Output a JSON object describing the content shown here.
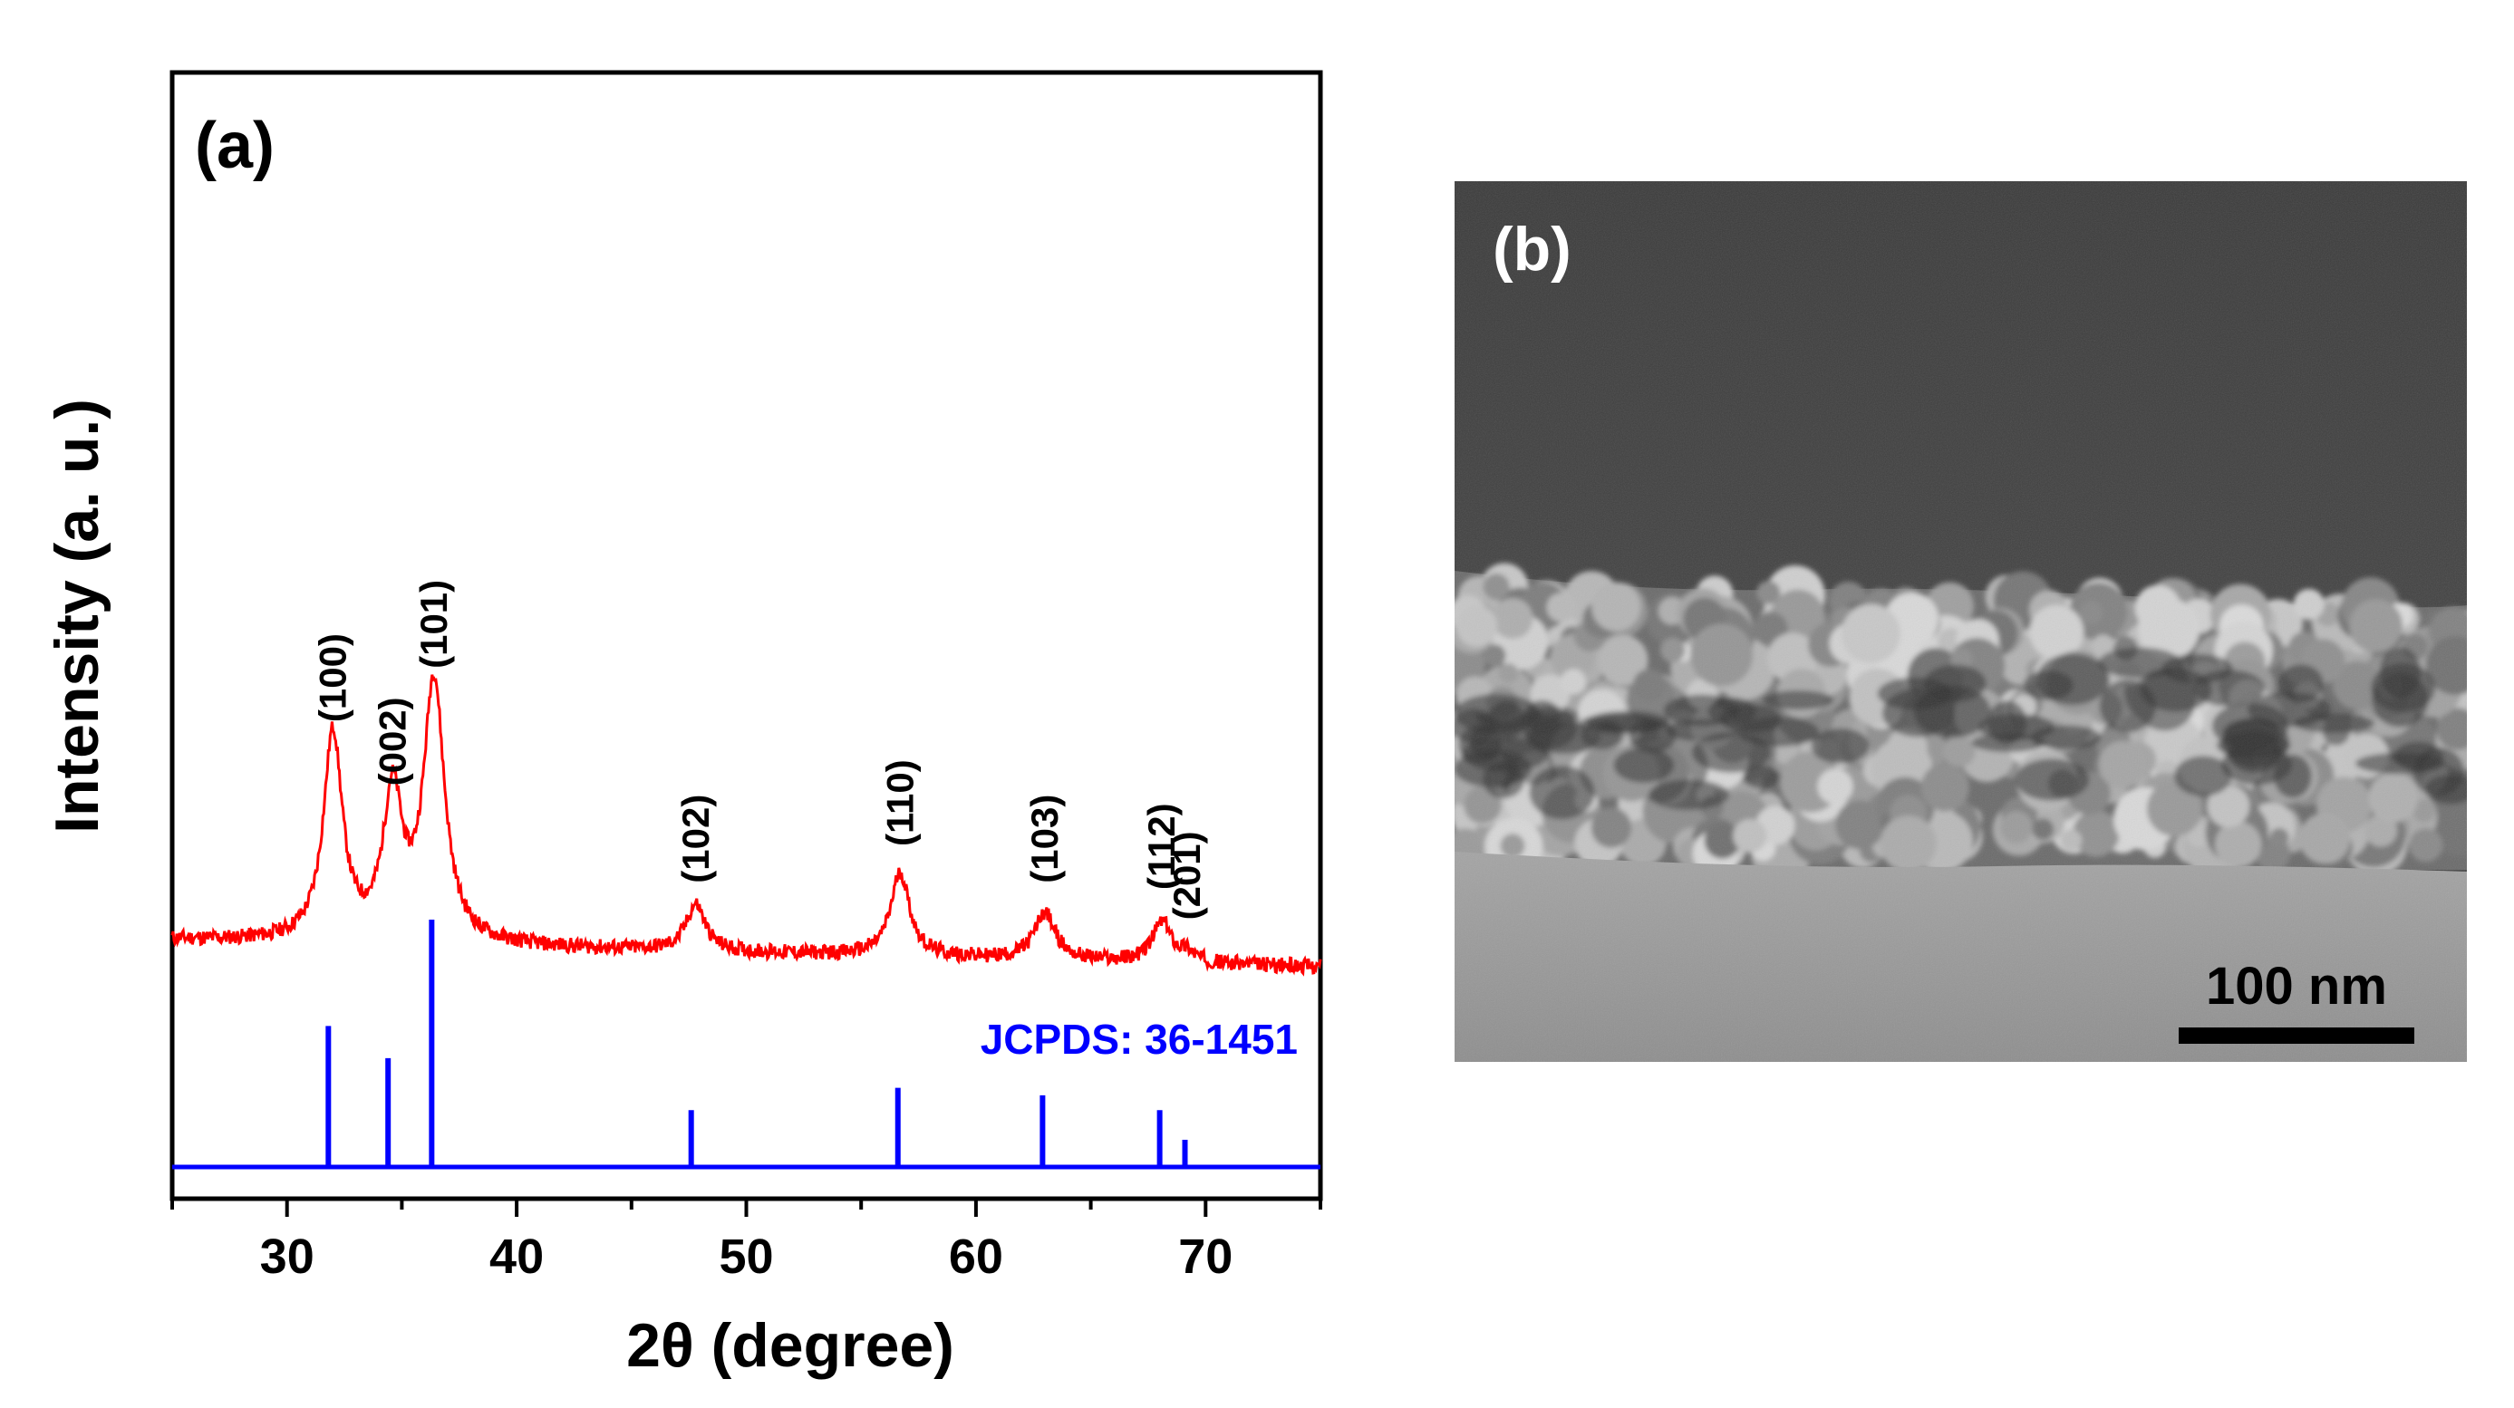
{
  "panel_a": {
    "label": "(a)",
    "reference_label": "JCPDS: 36-1451",
    "colors": {
      "measured": "#ff0000",
      "reference": "#0000ff",
      "axes": "#000000"
    }
  },
  "panel_b": {
    "label": "(b)",
    "scale_bar_text": "100 nm",
    "image_subject": "SEM cross-section of porous nanoparticle film on substrate"
  },
  "chart_data": {
    "type": "line",
    "title": "",
    "xlabel": "2θ (degree)",
    "ylabel": "Intensity (a. u.)",
    "xlim": [
      25,
      75
    ],
    "xticks": [
      30,
      40,
      50,
      60,
      70
    ],
    "yticks": [],
    "grid": false,
    "series": [
      {
        "name": "measured",
        "color": "#ff0000",
        "peaks": [
          {
            "x": 32.0,
            "height": 0.62,
            "width": 0.5,
            "label": "(100)"
          },
          {
            "x": 34.6,
            "height": 0.43,
            "width": 0.5,
            "label": "(002)"
          },
          {
            "x": 36.4,
            "height": 0.78,
            "width": 0.55,
            "label": "(101)"
          },
          {
            "x": 47.8,
            "height": 0.14,
            "width": 0.5,
            "label": "(102)"
          },
          {
            "x": 56.7,
            "height": 0.25,
            "width": 0.5,
            "label": "(110)"
          },
          {
            "x": 63.0,
            "height": 0.14,
            "width": 0.55,
            "label": "(103)"
          },
          {
            "x": 68.1,
            "height": 0.12,
            "width": 0.5,
            "label": "(112)"
          },
          {
            "x": 69.2,
            "height": 0.03,
            "width": 0.4,
            "label": "(201)"
          }
        ],
        "baseline": {
          "start": 0.07,
          "end": 0.0
        }
      },
      {
        "name": "reference",
        "color": "#0000ff",
        "sticks": [
          {
            "x": 31.8,
            "value": 57
          },
          {
            "x": 34.4,
            "value": 44
          },
          {
            "x": 36.3,
            "value": 100
          },
          {
            "x": 47.6,
            "value": 23
          },
          {
            "x": 56.6,
            "value": 32
          },
          {
            "x": 62.9,
            "value": 29
          },
          {
            "x": 68.0,
            "value": 23
          },
          {
            "x": 69.1,
            "value": 11
          }
        ]
      }
    ]
  }
}
